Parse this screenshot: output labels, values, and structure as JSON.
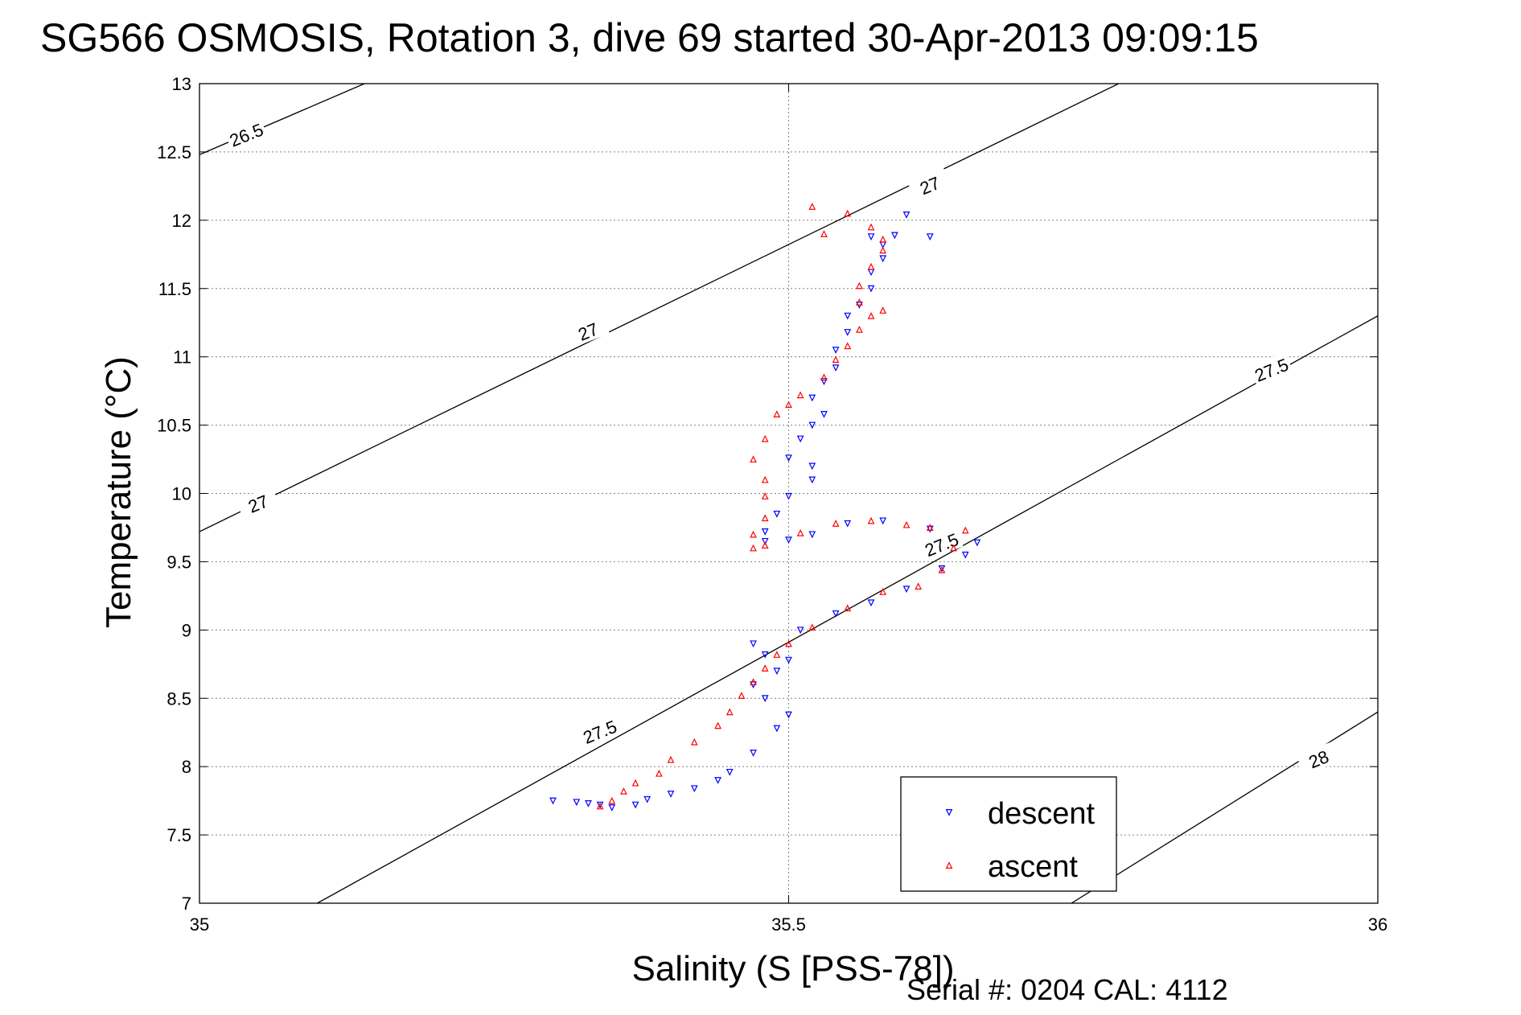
{
  "title": "SG566 OSMOSIS, Rotation 3, dive 69 started 30-Apr-2013 09:09:15",
  "footer": "Serial #: 0204  CAL: 4112",
  "colors": {
    "descent": "#0000ff",
    "ascent": "#ff0000",
    "grid": "#808080",
    "contour": "#000000"
  },
  "chart_data": {
    "type": "scatter",
    "xlabel": "Salinity (S [PSS-78])",
    "ylabel": "Temperature (°C)",
    "xlim": [
      35,
      36
    ],
    "ylim": [
      7,
      13
    ],
    "xticks": [
      "35",
      "35.5",
      "36"
    ],
    "yticks": [
      "7",
      "7.5",
      "8",
      "8.5",
      "9",
      "9.5",
      "10",
      "10.5",
      "11",
      "11.5",
      "12",
      "12.5",
      "13"
    ],
    "grid": true,
    "legend_position": "bottom-right",
    "contours": [
      {
        "label": "26.5",
        "points": [
          [
            35.0,
            12.48
          ],
          [
            35.14,
            13.0
          ]
        ]
      },
      {
        "label": "27",
        "points": [
          [
            35.0,
            9.72
          ],
          [
            35.78,
            13.0
          ]
        ]
      },
      {
        "label": "27.5",
        "points": [
          [
            35.1,
            7.0
          ],
          [
            36.0,
            11.3
          ]
        ]
      },
      {
        "label": "28",
        "points": [
          [
            35.74,
            7.0
          ],
          [
            36.0,
            8.4
          ]
        ]
      }
    ],
    "contour_labels": [
      {
        "text": "26.5",
        "x": 35.04,
        "y": 12.62
      },
      {
        "text": "27",
        "x": 35.05,
        "y": 9.92
      },
      {
        "text": "27",
        "x": 35.33,
        "y": 11.18
      },
      {
        "text": "27",
        "x": 35.62,
        "y": 12.25
      },
      {
        "text": "27.5",
        "x": 35.34,
        "y": 8.25
      },
      {
        "text": "27.5",
        "x": 35.63,
        "y": 9.62
      },
      {
        "text": "27.5",
        "x": 35.91,
        "y": 10.9
      },
      {
        "text": "28",
        "x": 35.95,
        "y": 8.05
      }
    ],
    "series": [
      {
        "name": "descent",
        "marker": "triangle-down",
        "points": [
          [
            35.3,
            7.75
          ],
          [
            35.32,
            7.74
          ],
          [
            35.33,
            7.73
          ],
          [
            35.34,
            7.72
          ],
          [
            35.35,
            7.7
          ],
          [
            35.37,
            7.72
          ],
          [
            35.38,
            7.76
          ],
          [
            35.4,
            7.8
          ],
          [
            35.42,
            7.84
          ],
          [
            35.44,
            7.9
          ],
          [
            35.45,
            7.96
          ],
          [
            35.47,
            8.1
          ],
          [
            35.49,
            8.28
          ],
          [
            35.5,
            8.38
          ],
          [
            35.48,
            8.5
          ],
          [
            35.47,
            8.6
          ],
          [
            35.49,
            8.7
          ],
          [
            35.5,
            8.78
          ],
          [
            35.48,
            8.82
          ],
          [
            35.47,
            8.9
          ],
          [
            35.51,
            9.0
          ],
          [
            35.54,
            9.12
          ],
          [
            35.57,
            9.2
          ],
          [
            35.6,
            9.3
          ],
          [
            35.63,
            9.45
          ],
          [
            35.65,
            9.55
          ],
          [
            35.66,
            9.64
          ],
          [
            35.62,
            9.74
          ],
          [
            35.58,
            9.8
          ],
          [
            35.55,
            9.78
          ],
          [
            35.52,
            9.7
          ],
          [
            35.5,
            9.66
          ],
          [
            35.48,
            9.65
          ],
          [
            35.48,
            9.72
          ],
          [
            35.49,
            9.85
          ],
          [
            35.5,
            9.98
          ],
          [
            35.52,
            10.1
          ],
          [
            35.52,
            10.2
          ],
          [
            35.5,
            10.26
          ],
          [
            35.51,
            10.4
          ],
          [
            35.52,
            10.5
          ],
          [
            35.53,
            10.58
          ],
          [
            35.52,
            10.7
          ],
          [
            35.53,
            10.82
          ],
          [
            35.54,
            10.92
          ],
          [
            35.54,
            11.05
          ],
          [
            35.55,
            11.18
          ],
          [
            35.55,
            11.3
          ],
          [
            35.56,
            11.38
          ],
          [
            35.57,
            11.5
          ],
          [
            35.57,
            11.62
          ],
          [
            35.58,
            11.72
          ],
          [
            35.58,
            11.82
          ],
          [
            35.57,
            11.88
          ],
          [
            35.59,
            11.89
          ],
          [
            35.6,
            12.04
          ],
          [
            35.62,
            11.88
          ]
        ]
      },
      {
        "name": "ascent",
        "marker": "triangle-up",
        "points": [
          [
            35.34,
            7.71
          ],
          [
            35.35,
            7.75
          ],
          [
            35.36,
            7.82
          ],
          [
            35.37,
            7.88
          ],
          [
            35.39,
            7.95
          ],
          [
            35.4,
            8.05
          ],
          [
            35.42,
            8.18
          ],
          [
            35.44,
            8.3
          ],
          [
            35.45,
            8.4
          ],
          [
            35.46,
            8.52
          ],
          [
            35.47,
            8.62
          ],
          [
            35.48,
            8.72
          ],
          [
            35.49,
            8.82
          ],
          [
            35.5,
            8.9
          ],
          [
            35.52,
            9.02
          ],
          [
            35.55,
            9.16
          ],
          [
            35.58,
            9.28
          ],
          [
            35.61,
            9.32
          ],
          [
            35.63,
            9.44
          ],
          [
            35.64,
            9.6
          ],
          [
            35.65,
            9.73
          ],
          [
            35.62,
            9.75
          ],
          [
            35.6,
            9.77
          ],
          [
            35.57,
            9.8
          ],
          [
            35.54,
            9.78
          ],
          [
            35.51,
            9.71
          ],
          [
            35.48,
            9.62
          ],
          [
            35.47,
            9.6
          ],
          [
            35.47,
            9.7
          ],
          [
            35.48,
            9.82
          ],
          [
            35.48,
            9.98
          ],
          [
            35.48,
            10.1
          ],
          [
            35.47,
            10.25
          ],
          [
            35.48,
            10.4
          ],
          [
            35.49,
            10.58
          ],
          [
            35.5,
            10.65
          ],
          [
            35.51,
            10.72
          ],
          [
            35.53,
            10.85
          ],
          [
            35.54,
            10.98
          ],
          [
            35.55,
            11.08
          ],
          [
            35.56,
            11.2
          ],
          [
            35.57,
            11.3
          ],
          [
            35.58,
            11.34
          ],
          [
            35.56,
            11.4
          ],
          [
            35.56,
            11.52
          ],
          [
            35.57,
            11.66
          ],
          [
            35.58,
            11.78
          ],
          [
            35.58,
            11.86
          ],
          [
            35.57,
            11.95
          ],
          [
            35.55,
            12.05
          ],
          [
            35.52,
            12.1
          ],
          [
            35.53,
            11.9
          ]
        ]
      }
    ]
  }
}
